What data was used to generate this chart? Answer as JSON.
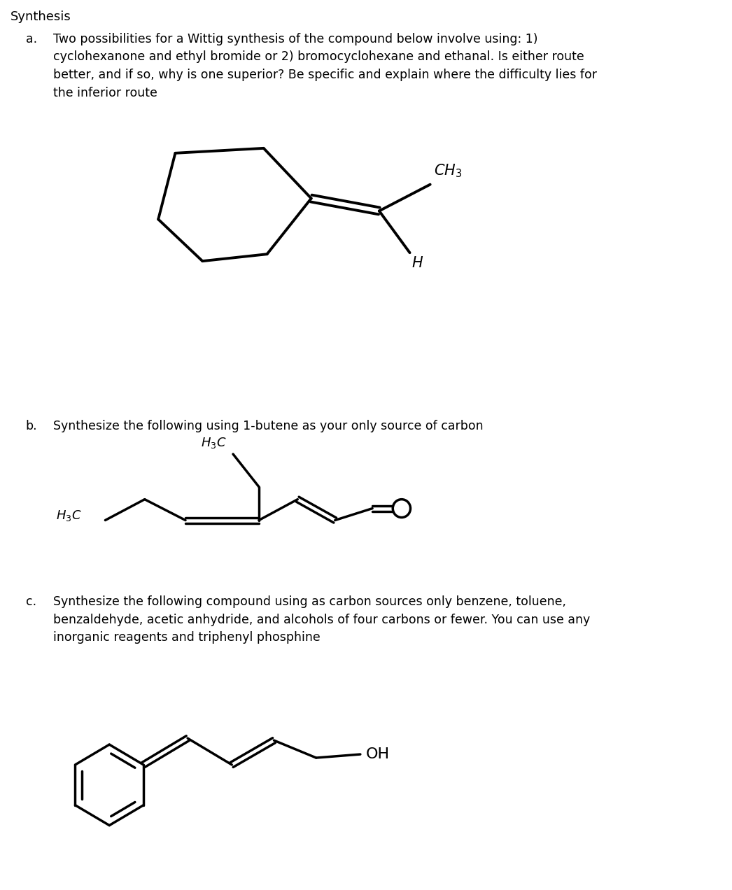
{
  "title": "Synthesis",
  "part_a_label": "a.",
  "part_a_text": "Two possibilities for a Wittig synthesis of the compound below involve using: 1)\ncyclohexanone and ethyl bromide or 2) bromocyclohexane and ethanal. Is either route\nbetter, and if so, why is one superior? Be specific and explain where the difficulty lies for\nthe inferior route",
  "part_b_label": "b.",
  "part_b_text": "Synthesize the following using 1-butene as your only source of carbon",
  "part_c_label": "c.",
  "part_c_text": "Synthesize the following compound using as carbon sources only benzene, toluene,\nbenzaldehyde, acetic anhydride, and alcohols of four carbons or fewer. You can use any\ninorganic reagents and triphenyl phosphine",
  "bg_color": "#ffffff",
  "text_color": "#000000",
  "title_fontsize": 13,
  "body_fontsize": 12.5,
  "label_fontsize": 12.5
}
